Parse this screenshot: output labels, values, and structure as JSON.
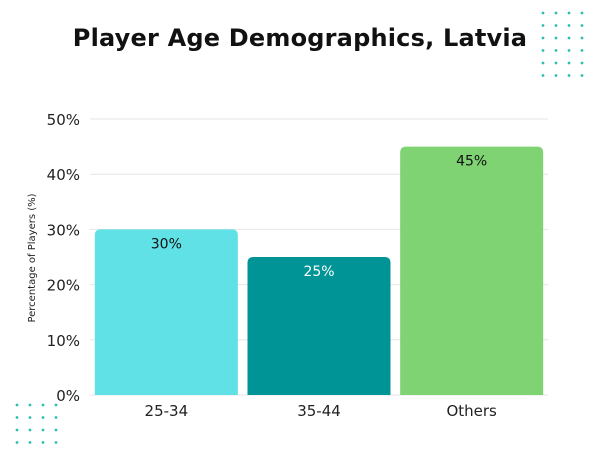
{
  "title": "Player Age Demographics, Latvia",
  "chart_data": {
    "type": "bar",
    "title": "Player Age Demographics, Latvia",
    "xlabel": "",
    "ylabel": "Percentage of Players (%)",
    "categories": [
      "25-34",
      "35-44",
      "Others"
    ],
    "values": [
      30,
      25,
      45
    ],
    "value_labels": [
      "30%",
      "25%",
      "45%"
    ],
    "bar_colors": [
      "#5fe1e6",
      "#009497",
      "#7fd373"
    ],
    "label_colors": [
      "#111111",
      "#ffffff",
      "#111111"
    ],
    "ylim": [
      0,
      50
    ],
    "yticks": [
      0,
      10,
      20,
      30,
      40,
      50
    ],
    "ytick_labels": [
      "0%",
      "10%",
      "20%",
      "30%",
      "40%",
      "50%"
    ],
    "grid": true,
    "legend": "none"
  },
  "decoration": {
    "dot_color": "#2dbfae"
  }
}
